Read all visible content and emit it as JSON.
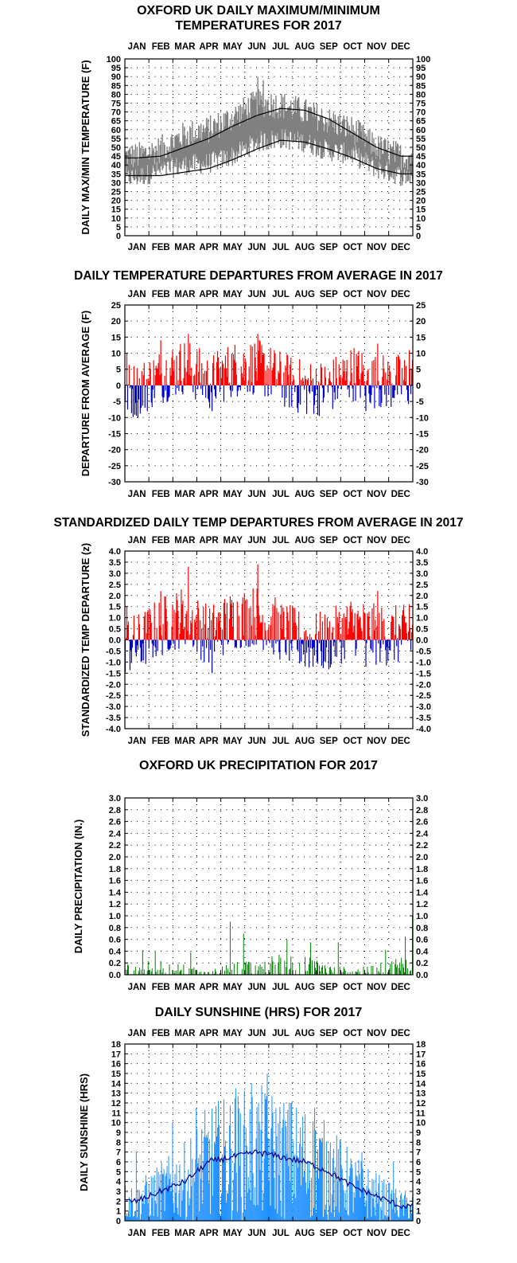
{
  "colors": {
    "temp_band": "#808080",
    "normal_line": "#000000",
    "positive": "#ff0000",
    "negative": "#0000cc",
    "precip": "#008000",
    "sunshine": "#1e90ff",
    "sun_avg": "#00008b"
  },
  "chart_data": [
    {
      "id": "temps",
      "type": "area",
      "title_line1": "OXFORD UK DAILY MAXIMUM/MINIMUM",
      "title_line2": "TEMPERATURES FOR 2017",
      "ylabel": "DAILY MAX/MIN TEMPERATURE (F)",
      "ylim": [
        0,
        100
      ],
      "yticks": [
        "0",
        "5",
        "10",
        "15",
        "20",
        "25",
        "30",
        "35",
        "40",
        "45",
        "50",
        "55",
        "60",
        "65",
        "70",
        "75",
        "80",
        "85",
        "90",
        "95",
        "100"
      ],
      "months": [
        "JAN",
        "FEB",
        "MAR",
        "APR",
        "MAY",
        "JUN",
        "JUL",
        "AUG",
        "SEP",
        "OCT",
        "NOV",
        "DEC"
      ],
      "months_top": true,
      "months_bottom": true,
      "series": [
        {
          "role": "daily_max",
          "monthly_values": [
            45,
            49,
            57,
            60,
            67,
            75,
            74,
            70,
            65,
            60,
            50,
            45
          ]
        },
        {
          "role": "daily_min",
          "monthly_values": [
            33,
            37,
            40,
            41,
            45,
            53,
            55,
            53,
            48,
            46,
            38,
            34
          ]
        },
        {
          "role": "normal_max",
          "monthly_values": [
            44,
            45,
            50,
            55,
            62,
            68,
            72,
            71,
            66,
            58,
            50,
            45
          ]
        },
        {
          "role": "normal_min",
          "monthly_values": [
            34,
            34,
            36,
            38,
            43,
            49,
            54,
            53,
            49,
            44,
            38,
            35
          ]
        }
      ]
    },
    {
      "id": "departures",
      "type": "bar",
      "title": "DAILY TEMPERATURE DEPARTURES FROM AVERAGE IN 2017",
      "ylabel": "DEPARTURE FROM AVERAGE (F)",
      "ylim": [
        -30,
        25
      ],
      "yticks": [
        "-30",
        "-25",
        "-20",
        "-15",
        "-10",
        "-5",
        "0",
        "5",
        "10",
        "15",
        "20",
        "25"
      ],
      "months": [
        "JAN",
        "FEB",
        "MAR",
        "APR",
        "MAY",
        "JUN",
        "JUL",
        "AUG",
        "SEP",
        "OCT",
        "NOV",
        "DEC"
      ],
      "months_top": true,
      "months_bottom": true,
      "monthly_values": [
        -1.5,
        3,
        6,
        1,
        5,
        6,
        2,
        -1,
        -0.5,
        4,
        1,
        1
      ],
      "peaks": [
        [
          2,
          10
        ],
        [
          20,
          -7
        ],
        [
          45,
          14
        ],
        [
          80,
          16
        ],
        [
          110,
          -8
        ],
        [
          168,
          16
        ],
        [
          305,
          -8
        ],
        [
          320,
          13
        ],
        [
          360,
          11
        ]
      ]
    },
    {
      "id": "standardized",
      "type": "bar",
      "title": "STANDARDIZED DAILY TEMP DEPARTURES FROM AVERAGE IN 2017",
      "ylabel": "STANDARDIZED TEMP DEPARTURE (z)",
      "ylim": [
        -4,
        4
      ],
      "yticks": [
        "-4.0",
        "-3.5",
        "-3.0",
        "-2.5",
        "-2.0",
        "-1.5",
        "-1.0",
        "-0.5",
        "0.0",
        "0.5",
        "1.0",
        "1.5",
        "2.0",
        "2.5",
        "3.0",
        "3.5",
        "4.0"
      ],
      "months": [
        "JAN",
        "FEB",
        "MAR",
        "APR",
        "MAY",
        "JUN",
        "JUL",
        "AUG",
        "SEP",
        "OCT",
        "NOV",
        "DEC"
      ],
      "months_top": true,
      "months_bottom": true,
      "monthly_values": [
        -0.2,
        0.6,
        1.1,
        0.2,
        0.9,
        1.1,
        0.4,
        -0.1,
        -0.1,
        0.7,
        0.2,
        0.2
      ],
      "peaks": [
        [
          2,
          1.5
        ],
        [
          20,
          -1.0
        ],
        [
          45,
          2.2
        ],
        [
          80,
          3.3
        ],
        [
          110,
          -1.5
        ],
        [
          168,
          3.4
        ],
        [
          305,
          -1.2
        ],
        [
          320,
          2.2
        ],
        [
          360,
          1.6
        ]
      ]
    },
    {
      "id": "precip",
      "type": "bar",
      "title": "OXFORD UK PRECIPITATION FOR 2017",
      "ylabel": "DAILY PRECIPITATION (IN.)",
      "ylim": [
        0,
        3
      ],
      "yticks": [
        "0.0",
        "0.2",
        "0.4",
        "0.6",
        "0.8",
        "1.0",
        "1.2",
        "1.4",
        "1.6",
        "1.8",
        "2.0",
        "2.2",
        "2.4",
        "2.6",
        "2.8",
        "3.0"
      ],
      "months": [
        "JAN",
        "FEB",
        "MAR",
        "APR",
        "MAY",
        "JUN",
        "JUL",
        "AUG",
        "SEP",
        "OCT",
        "NOV",
        "DEC"
      ],
      "months_top": false,
      "months_bottom": true,
      "monthly_values": [
        0.1,
        0.12,
        0.08,
        0.02,
        0.12,
        0.1,
        0.18,
        0.15,
        0.08,
        0.05,
        0.08,
        0.15
      ],
      "peaks": [
        [
          22,
          0.42
        ],
        [
          38,
          0.4
        ],
        [
          83,
          0.38
        ],
        [
          133,
          0.9
        ],
        [
          150,
          0.7
        ],
        [
          205,
          0.6
        ],
        [
          235,
          0.55
        ],
        [
          270,
          0.55
        ],
        [
          330,
          0.42
        ],
        [
          355,
          0.65
        ],
        [
          364,
          1.0
        ]
      ]
    },
    {
      "id": "sunshine",
      "type": "bar",
      "title": "DAILY SUNSHINE (HRS) FOR 2017",
      "ylabel": "DAILY SUNSHINE (HRS)",
      "ylim": [
        0,
        18
      ],
      "yticks": [
        "0",
        "1",
        "2",
        "3",
        "4",
        "5",
        "6",
        "7",
        "8",
        "9",
        "10",
        "11",
        "12",
        "13",
        "14",
        "15",
        "16",
        "17",
        "18"
      ],
      "months": [
        "JAN",
        "FEB",
        "MAR",
        "APR",
        "MAY",
        "JUN",
        "JUL",
        "AUG",
        "SEP",
        "OCT",
        "NOV",
        "DEC"
      ],
      "months_top": true,
      "months_bottom": true,
      "monthly_values": [
        2,
        3,
        4,
        6,
        6.5,
        7,
        6.5,
        6,
        5,
        3.5,
        2.5,
        1.5
      ],
      "peaks": [
        [
          14,
          7
        ],
        [
          60,
          10
        ],
        [
          90,
          11.5
        ],
        [
          140,
          13.5
        ],
        [
          160,
          14
        ],
        [
          180,
          15
        ],
        [
          210,
          12
        ],
        [
          240,
          11.5
        ],
        [
          260,
          8
        ],
        [
          300,
          7
        ],
        [
          340,
          6
        ]
      ]
    }
  ]
}
